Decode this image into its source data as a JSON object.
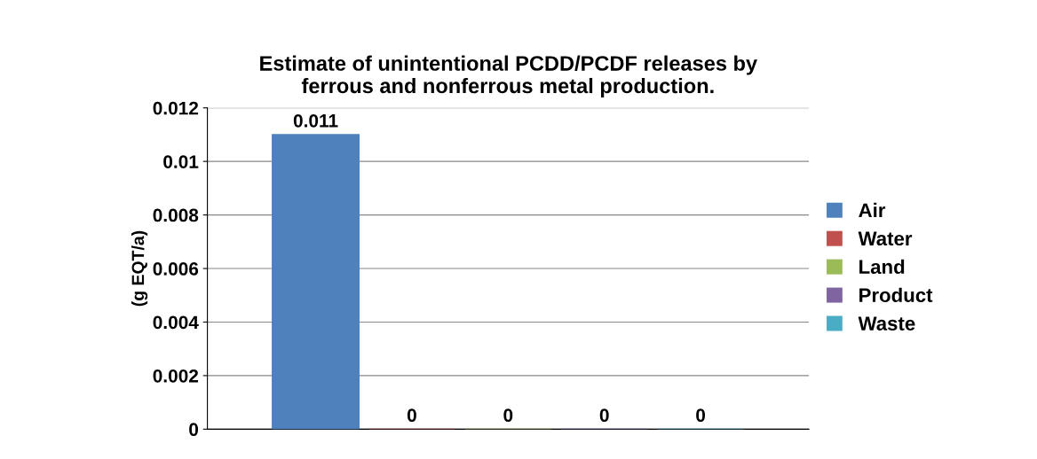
{
  "chart_data": {
    "type": "bar",
    "title": "Estimate of unintentional PCDD/PCDF releases by\nferrous and nonferrous metal production.",
    "ylabel": "(g EQT/a)",
    "categories": [
      null
    ],
    "series": [
      {
        "name": "Air",
        "color": "#4f81bd",
        "values": [
          0.011
        ]
      },
      {
        "name": "Water",
        "color": "#c0504d",
        "values": [
          0
        ]
      },
      {
        "name": "Land",
        "color": "#9bbb59",
        "values": [
          0
        ]
      },
      {
        "name": "Product",
        "color": "#8064a2",
        "values": [
          0
        ]
      },
      {
        "name": "Waste",
        "color": "#4bacc6",
        "values": [
          0
        ]
      }
    ],
    "ylim": [
      0,
      0.012
    ],
    "yticks": [
      0,
      0.002,
      0.004,
      0.006,
      0.008,
      0.01,
      0.012
    ],
    "grid": "y",
    "legend": "right",
    "data_labels": true
  }
}
